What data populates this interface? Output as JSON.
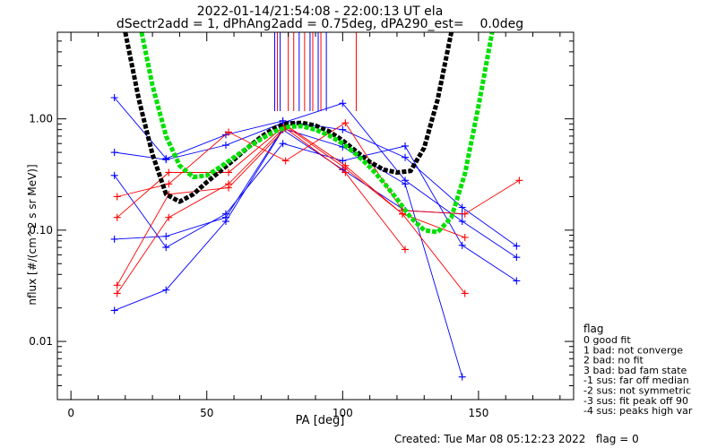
{
  "chart_data": {
    "type": "scatter",
    "title": "2022-01-14/21:54:08 - 22:00:13 UT ela",
    "subtitle": "dSectr2add = 1, dPhAng2add = 0.75deg, dPA290_est=    0.0deg",
    "xlabel": "PA [deg]",
    "ylabel": "nflux [#/(cm^2 s sr MeV)]",
    "xlim": [
      -5,
      185
    ],
    "ylim": [
      0.003,
      6
    ],
    "yscale": "log",
    "xticks": [
      0,
      50,
      100,
      150
    ],
    "yticks": [
      0.01,
      0.1,
      1.0
    ],
    "ytick_labels": [
      "0.01",
      "0.10",
      "1.00"
    ],
    "grid": false,
    "series": [
      {
        "color": "#0000ff",
        "x": [
          16,
          35,
          57,
          78,
          100,
          123,
          144,
          164
        ],
        "y": [
          1.55,
          0.44,
          0.72,
          0.96,
          0.8,
          0.45,
          0.16,
          0.072
        ]
      },
      {
        "color": "#0000ff",
        "x": [
          16,
          35,
          57,
          78,
          100,
          123,
          144,
          164
        ],
        "y": [
          0.5,
          0.43,
          0.58,
          0.92,
          1.38,
          0.28,
          0.12,
          0.057
        ]
      },
      {
        "color": "#0000ff",
        "x": [
          16,
          35,
          57,
          78,
          100,
          123,
          144,
          164
        ],
        "y": [
          0.31,
          0.07,
          0.14,
          0.6,
          0.42,
          0.57,
          0.073,
          0.035
        ]
      },
      {
        "color": "#0000ff",
        "x": [
          16,
          35,
          57,
          78,
          100,
          123,
          144
        ],
        "y": [
          0.083,
          0.088,
          0.13,
          0.82,
          0.56,
          0.26,
          0.0048
        ]
      },
      {
        "color": "#0000ff",
        "x": [
          16,
          35,
          57,
          78,
          100,
          123,
          144
        ],
        "y": [
          0.019,
          0.029,
          0.12,
          0.8,
          0.35,
          0.15,
          0.14
        ]
      },
      {
        "color": "#ff0000",
        "x": [
          17,
          36,
          58,
          79,
          101,
          122,
          145,
          165
        ],
        "y": [
          0.2,
          0.26,
          0.76,
          0.42,
          0.92,
          0.15,
          0.14,
          0.28
        ]
      },
      {
        "color": "#ff0000",
        "x": [
          17,
          36,
          58,
          79,
          101,
          122,
          145
        ],
        "y": [
          0.13,
          0.33,
          0.33,
          0.88,
          0.38,
          0.14,
          0.086
        ]
      },
      {
        "color": "#ff0000",
        "x": [
          17,
          36,
          58,
          79,
          101,
          123
        ],
        "y": [
          0.032,
          0.21,
          0.24,
          0.82,
          0.33,
          0.067
        ]
      },
      {
        "color": "#ff0000",
        "x": [
          17,
          36,
          58,
          79,
          101,
          122,
          145
        ],
        "y": [
          0.027,
          0.13,
          0.26,
          0.86,
          0.36,
          0.14,
          0.027
        ]
      }
    ],
    "fit_curves": [
      {
        "color": "#000000",
        "style": "dashed-thick",
        "x": [
          20,
          25,
          30,
          35,
          40,
          45,
          50,
          55,
          60,
          65,
          70,
          75,
          80,
          85,
          90,
          95,
          100,
          105,
          110,
          115,
          120,
          125,
          130,
          135,
          140
        ],
        "y": [
          6.0,
          1.5,
          0.48,
          0.21,
          0.18,
          0.21,
          0.27,
          0.34,
          0.43,
          0.55,
          0.69,
          0.83,
          0.91,
          0.92,
          0.87,
          0.77,
          0.64,
          0.51,
          0.41,
          0.35,
          0.33,
          0.34,
          0.55,
          1.5,
          6.0
        ]
      },
      {
        "color": "#00e000",
        "style": "dashed-thick",
        "x": [
          26,
          30,
          35,
          40,
          45,
          50,
          55,
          60,
          65,
          70,
          75,
          80,
          85,
          90,
          95,
          100,
          105,
          110,
          115,
          120,
          125,
          130,
          135,
          140,
          145,
          150,
          155
        ],
        "y": [
          6.0,
          2.0,
          0.7,
          0.38,
          0.3,
          0.31,
          0.37,
          0.45,
          0.55,
          0.66,
          0.77,
          0.85,
          0.86,
          0.8,
          0.71,
          0.6,
          0.48,
          0.37,
          0.27,
          0.19,
          0.13,
          0.1,
          0.096,
          0.13,
          0.32,
          1.3,
          6.0
        ]
      }
    ],
    "vertical_markers": [
      {
        "color": "#0000ff",
        "x": [
          75,
          77,
          84,
          88,
          91,
          94
        ]
      },
      {
        "color": "#ff0000",
        "x": [
          76,
          80,
          82,
          86,
          89,
          92,
          105
        ]
      }
    ],
    "legend": {
      "placement": "right",
      "title": "flag",
      "entries": [
        " 0 good fit",
        " 1 bad: not converge",
        " 2 bad: no fit",
        " 3 bad: bad fam state",
        "-1 sus: far off median",
        "-2 sus: not symmetric",
        "-3 sus: fit peak off 90",
        "-4 sus: peaks high var"
      ]
    },
    "footer": "Created: Tue Mar 08 05:12:23 2022   flag = 0"
  }
}
